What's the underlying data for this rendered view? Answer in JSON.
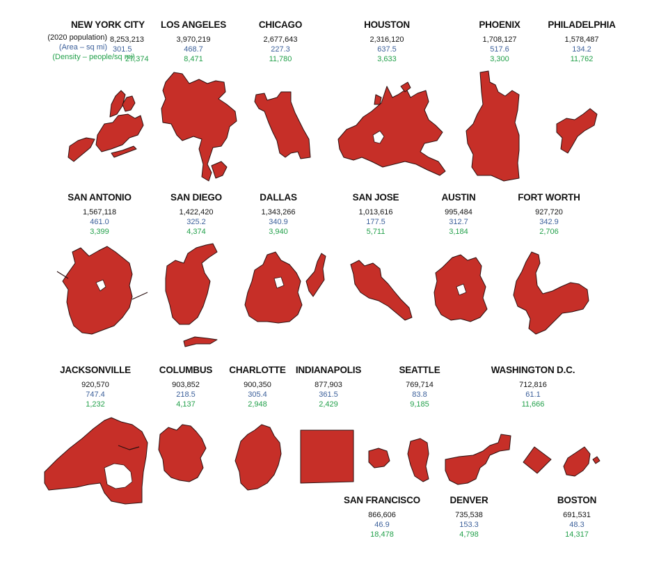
{
  "colors": {
    "shape": "#c62f28",
    "area": "#3b5f9a",
    "density": "#22a04a"
  },
  "legend": {
    "population": "(2020 population)",
    "area": "(Area – sq mi)",
    "density": "(Density – people/sq mi)"
  },
  "cities": [
    {
      "name": "NEW YORK CITY",
      "population": "8,253,213",
      "area": "301.5",
      "density": "27,374"
    },
    {
      "name": "LOS ANGELES",
      "population": "3,970,219",
      "area": "468.7",
      "density": "8,471"
    },
    {
      "name": "CHICAGO",
      "population": "2,677,643",
      "area": "227.3",
      "density": "11,780"
    },
    {
      "name": "HOUSTON",
      "population": "2,316,120",
      "area": "637.5",
      "density": "3,633"
    },
    {
      "name": "PHOENIX",
      "population": "1,708,127",
      "area": "517.6",
      "density": "3,300"
    },
    {
      "name": "PHILADELPHIA",
      "population": "1,578,487",
      "area": "134.2",
      "density": "11,762"
    },
    {
      "name": "SAN ANTONIO",
      "population": "1,567,118",
      "area": "461.0",
      "density": "3,399"
    },
    {
      "name": "SAN DIEGO",
      "population": "1,422,420",
      "area": "325.2",
      "density": "4,374"
    },
    {
      "name": "DALLAS",
      "population": "1,343,266",
      "area": "340.9",
      "density": "3,940"
    },
    {
      "name": "SAN JOSE",
      "population": "1,013,616",
      "area": "177.5",
      "density": "5,711"
    },
    {
      "name": "AUSTIN",
      "population": "995,484",
      "area": "312.7",
      "density": "3,184"
    },
    {
      "name": "FORT WORTH",
      "population": "927,720",
      "area": "342.9",
      "density": "2,706"
    },
    {
      "name": "JACKSONVILLE",
      "population": "920,570",
      "area": "747.4",
      "density": "1,232"
    },
    {
      "name": "COLUMBUS",
      "population": "903,852",
      "area": "218.5",
      "density": "4,137"
    },
    {
      "name": "CHARLOTTE",
      "population": "900,350",
      "area": "305.4",
      "density": "2,948"
    },
    {
      "name": "INDIANAPOLIS",
      "population": "877,903",
      "area": "361.5",
      "density": "2,429"
    },
    {
      "name": "SEATTLE",
      "population": "769,714",
      "area": "83.8",
      "density": "9,185"
    },
    {
      "name": "WASHINGTON D.C.",
      "population": "712,816",
      "area": "61.1",
      "density": "11,666"
    },
    {
      "name": "SAN FRANCISCO",
      "population": "866,606",
      "area": "46.9",
      "density": "18,478"
    },
    {
      "name": "DENVER",
      "population": "735,538",
      "area": "153.3",
      "density": "4,798"
    },
    {
      "name": "BOSTON",
      "population": "691,531",
      "area": "48.3",
      "density": "14,317"
    }
  ]
}
